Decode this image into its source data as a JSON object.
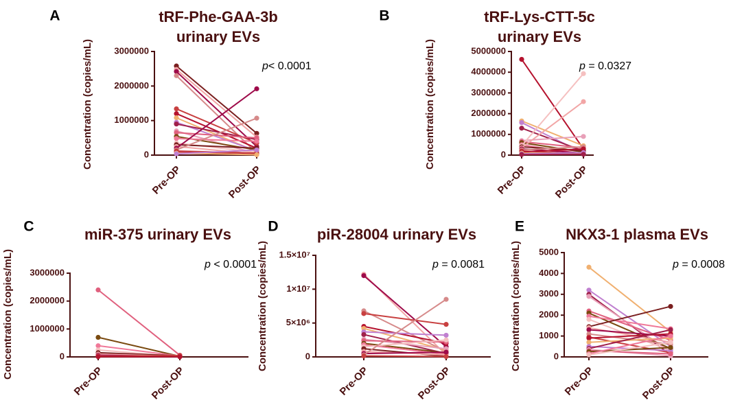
{
  "colors": {
    "axis": "#4a1010",
    "palette": [
      "#7a1f1f",
      "#b5122e",
      "#e0607e",
      "#f2a6a6",
      "#f0b070",
      "#7a4a10",
      "#9e0b4a",
      "#c080d0",
      "#f07898",
      "#d68a8a",
      "#a0204a",
      "#f5c0c0",
      "#c84040",
      "#e8a0b8"
    ]
  },
  "chart_data": [
    {
      "id": "A",
      "panel_label": "A",
      "type": "paired-line",
      "title_lines": [
        "tRF-Phe-GAA-3b",
        "urinary  EVs"
      ],
      "ylabel": "Concentration (copies/mL)",
      "categories": [
        "Pre-OP",
        "Post-OP"
      ],
      "ylim": [
        0,
        3000000
      ],
      "yticks": [
        0,
        1000000,
        2000000,
        3000000
      ],
      "ytick_labels": [
        "0",
        "1000000",
        "2000000",
        "3000000"
      ],
      "p_label": "p",
      "p_text": "< 0.0001",
      "pairs": [
        [
          2580000,
          630000
        ],
        [
          2480000,
          520000
        ],
        [
          2420000,
          250000
        ],
        [
          2300000,
          60000
        ],
        [
          1340000,
          350000
        ],
        [
          1200000,
          200000
        ],
        [
          1080000,
          100000
        ],
        [
          950000,
          120000
        ],
        [
          900000,
          450000
        ],
        [
          700000,
          40000
        ],
        [
          650000,
          500000
        ],
        [
          540000,
          150000
        ],
        [
          480000,
          400000
        ],
        [
          350000,
          80000
        ],
        [
          300000,
          200000
        ],
        [
          250000,
          30000
        ],
        [
          200000,
          1920000
        ],
        [
          150000,
          1070000
        ],
        [
          120000,
          60000
        ],
        [
          80000,
          20000
        ],
        [
          60000,
          10000
        ],
        [
          40000,
          150000
        ]
      ]
    },
    {
      "id": "B",
      "panel_label": "B",
      "type": "paired-line",
      "title_lines": [
        "tRF-Lys-CTT-5c",
        "urinary  EVs"
      ],
      "ylabel": "Concentration (copies/mL)",
      "categories": [
        "Pre-OP",
        "Post-OP"
      ],
      "ylim": [
        0,
        5000000
      ],
      "yticks": [
        0,
        1000000,
        2000000,
        3000000,
        4000000,
        5000000
      ],
      "ytick_labels": [
        "0",
        "1000000",
        "2000000",
        "3000000",
        "4000000",
        "5000000"
      ],
      "p_label": "p",
      "p_text": " = 0.0327",
      "pairs": [
        [
          4620000,
          300000
        ],
        [
          1650000,
          450000
        ],
        [
          1570000,
          100000
        ],
        [
          1300000,
          200000
        ],
        [
          700000,
          900000
        ],
        [
          650000,
          350000
        ],
        [
          600000,
          150000
        ],
        [
          500000,
          50000
        ],
        [
          450000,
          3930000
        ],
        [
          400000,
          200000
        ],
        [
          350000,
          2580000
        ],
        [
          300000,
          100000
        ],
        [
          250000,
          400000
        ],
        [
          200000,
          50000
        ],
        [
          150000,
          300000
        ],
        [
          100000,
          80000
        ],
        [
          60000,
          120000
        ],
        [
          30000,
          40000
        ]
      ]
    },
    {
      "id": "C",
      "panel_label": "C",
      "type": "paired-line",
      "title_lines": [
        "miR-375 urinary  EVs"
      ],
      "ylabel": "Concentration (copies/mL)",
      "categories": [
        "Pre-OP",
        "Post-OP"
      ],
      "ylim": [
        0,
        3000000
      ],
      "yticks": [
        0,
        1000000,
        2000000,
        3000000
      ],
      "ytick_labels": [
        "0",
        "1000000",
        "2000000",
        "3000000"
      ],
      "p_label": "p",
      "p_text": " < 0.0001",
      "pairs": [
        [
          2400000,
          60000
        ],
        [
          700000,
          20000
        ],
        [
          400000,
          30000
        ],
        [
          250000,
          10000
        ],
        [
          150000,
          40000
        ],
        [
          100000,
          20000
        ],
        [
          60000,
          15000
        ],
        [
          30000,
          10000
        ],
        [
          20000,
          50000
        ],
        [
          10000,
          5000
        ]
      ]
    },
    {
      "id": "D",
      "panel_label": "D",
      "type": "paired-line",
      "title_lines": [
        "piR-28004 urinary EVs"
      ],
      "ylabel": "Concentration (copies/mL)",
      "categories": [
        "Pre-OP",
        "Post-OP"
      ],
      "ylim": [
        0,
        15000000
      ],
      "yticks": [
        0,
        5000000,
        10000000,
        15000000
      ],
      "ytick_labels": [
        "0",
        "5×10⁶",
        "1×10⁷",
        "1.5×10⁷"
      ],
      "p_label": "p",
      "p_text": " = 0.0081",
      "pairs": [
        [
          12200000,
          300000
        ],
        [
          12000000,
          1500000
        ],
        [
          6800000,
          800000
        ],
        [
          6400000,
          4800000
        ],
        [
          4500000,
          2000000
        ],
        [
          4200000,
          1000000
        ],
        [
          3700000,
          3200000
        ],
        [
          3300000,
          500000
        ],
        [
          2600000,
          1200000
        ],
        [
          2400000,
          2200000
        ],
        [
          2000000,
          600000
        ],
        [
          1800000,
          400000
        ],
        [
          1500000,
          2500000
        ],
        [
          1200000,
          100000
        ],
        [
          800000,
          300000
        ],
        [
          500000,
          700000
        ],
        [
          300000,
          8500000
        ],
        [
          150000,
          50000
        ]
      ]
    },
    {
      "id": "E",
      "panel_label": "E",
      "type": "paired-line",
      "title_lines": [
        "NKX3-1 plasma  EVs"
      ],
      "ylabel": "Concentration (copies/mL)",
      "categories": [
        "Pre-OP",
        "Post-OP"
      ],
      "ylim": [
        0,
        5000
      ],
      "yticks": [
        0,
        1000,
        2000,
        3000,
        4000,
        5000
      ],
      "ytick_labels": [
        "0",
        "1000",
        "2000",
        "3000",
        "4000",
        "5000"
      ],
      "p_label": "p",
      "p_text": " = 0.0008",
      "pairs": [
        [
          4300,
          1200
        ],
        [
          3200,
          500
        ],
        [
          3000,
          100
        ],
        [
          2900,
          250
        ],
        [
          2200,
          800
        ],
        [
          2100,
          400
        ],
        [
          1950,
          1350
        ],
        [
          1800,
          300
        ],
        [
          1450,
          2420
        ],
        [
          1400,
          700
        ],
        [
          1300,
          1000
        ],
        [
          1100,
          600
        ],
        [
          950,
          200
        ],
        [
          900,
          1100
        ],
        [
          700,
          900
        ],
        [
          500,
          300
        ],
        [
          400,
          1300
        ],
        [
          350,
          50
        ],
        [
          300,
          150
        ],
        [
          250,
          450
        ],
        [
          150,
          1000
        ],
        [
          100,
          700
        ]
      ]
    }
  ]
}
